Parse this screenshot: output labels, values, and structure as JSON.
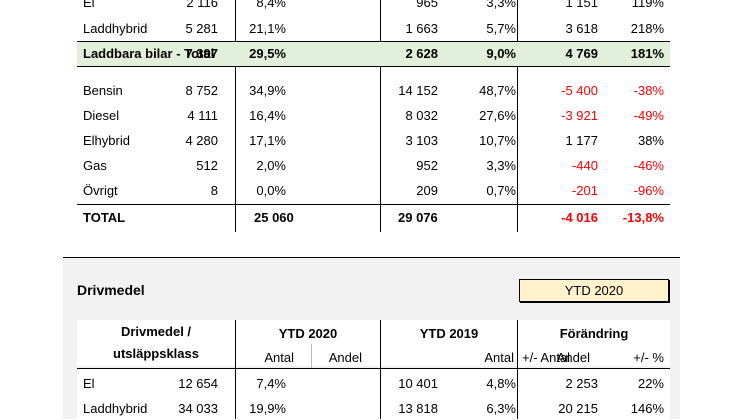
{
  "top_table": {
    "rows": [
      {
        "label": "El",
        "a20": "2 116",
        "p20": "8,4%",
        "a19": "965",
        "p19": "3,3%",
        "dA": "1 151",
        "dP": "119%",
        "neg": false
      },
      {
        "label": "Laddhybrid",
        "a20": "5 281",
        "p20": "21,1%",
        "a19": "1 663",
        "p19": "5,7%",
        "dA": "3 618",
        "dP": "218%",
        "neg": false
      }
    ],
    "total_laddbara": {
      "label": "Laddbara bilar - Total",
      "a20": "7 397",
      "p20": "29,5%",
      "a19": "2 628",
      "p19": "9,0%",
      "dA": "4 769",
      "dP": "181%"
    },
    "rows2": [
      {
        "label": "Bensin",
        "a20": "8 752",
        "p20": "34,9%",
        "a19": "14 152",
        "p19": "48,7%",
        "dA": "-5 400",
        "dP": "-38%",
        "neg": true
      },
      {
        "label": "Diesel",
        "a20": "4 111",
        "p20": "16,4%",
        "a19": "8 032",
        "p19": "27,6%",
        "dA": "-3 921",
        "dP": "-49%",
        "neg": true
      },
      {
        "label": "Elhybrid",
        "a20": "4 280",
        "p20": "17,1%",
        "a19": "3 103",
        "p19": "10,7%",
        "dA": "1 177",
        "dP": "38%",
        "neg": false
      },
      {
        "label": "Gas",
        "a20": "512",
        "p20": "2,0%",
        "a19": "952",
        "p19": "3,3%",
        "dA": "-440",
        "dP": "-46%",
        "neg": true
      },
      {
        "label": "Övrigt",
        "a20": "8",
        "p20": "0,0%",
        "a19": "209",
        "p19": "0,7%",
        "dA": "-201",
        "dP": "-96%",
        "neg": true
      }
    ],
    "total": {
      "label": "TOTAL",
      "a20": "25 060",
      "a19": "29 076",
      "dA": "-4 016",
      "dP": "-13,8%"
    }
  },
  "section2": {
    "title": "Drivmedel",
    "period_box": "YTD 2020",
    "header": {
      "col1_line1": "Drivmedel /",
      "col1_line2": "utsläppsklass",
      "ytd2020": "YTD 2020",
      "ytd2019": "YTD 2019",
      "change": "Förändring",
      "antal": "Antal",
      "andel": "Andel",
      "antal2": "Antal",
      "andel2": "Andel",
      "plus_minus_antal": "+/- Antal",
      "plus_minus_pct": "+/- %"
    },
    "rows": [
      {
        "label": "El",
        "a20": "12 654",
        "p20": "7,4%",
        "a19": "10 401",
        "p19": "4,8%",
        "dA": "2 253",
        "dP": "22%"
      },
      {
        "label": "Laddhybrid",
        "a20": "34 033",
        "p20": "19,9%",
        "a19": "13 818",
        "p19": "6,3%",
        "dA": "20 215",
        "dP": "146%"
      }
    ]
  },
  "colors": {
    "green_band": "#e2efda",
    "negative": "#ff0000",
    "section_bg": "#f2f2f2",
    "period_box_bg": "#fff2cc"
  }
}
